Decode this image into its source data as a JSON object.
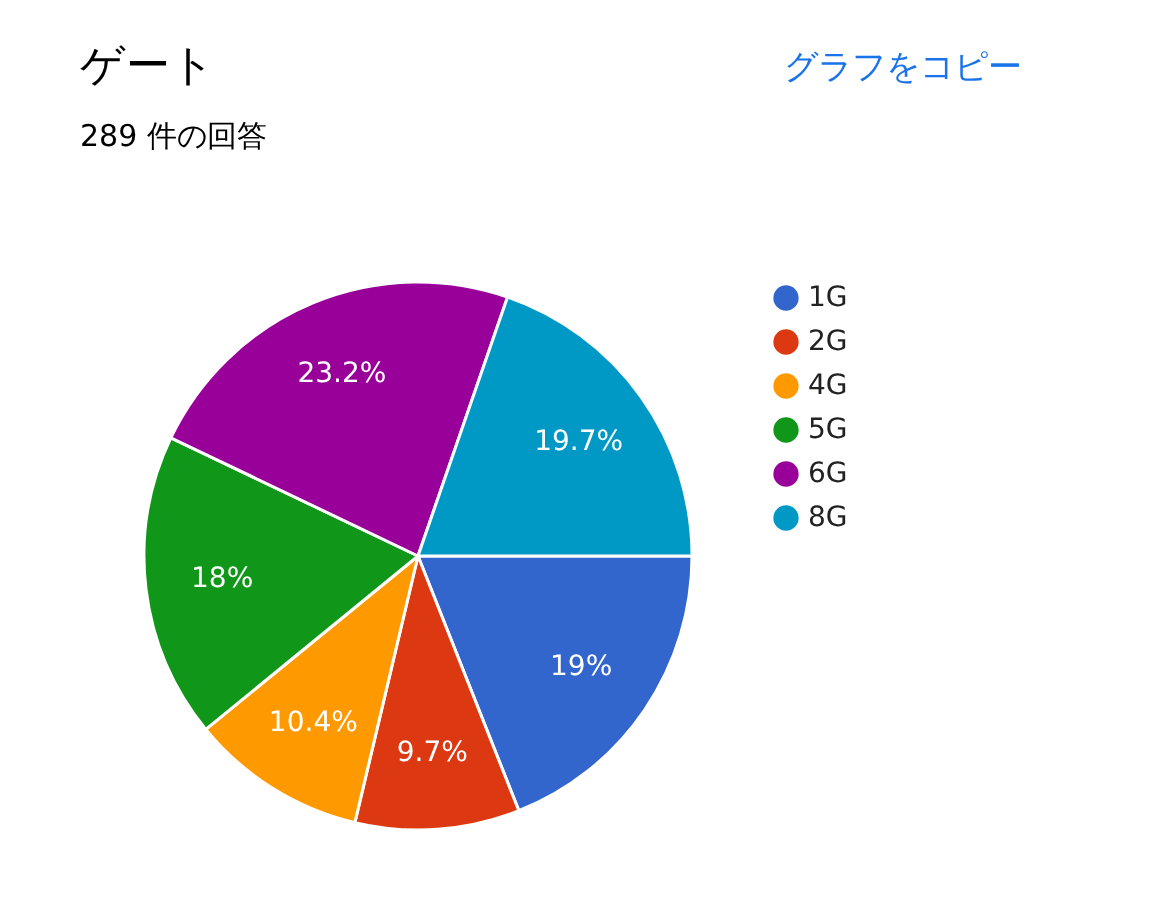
{
  "chart_data": {
    "type": "pie",
    "title": "ゲート",
    "subtitle": "289 件の回答",
    "categories": [
      "1G",
      "2G",
      "4G",
      "5G",
      "6G",
      "8G"
    ],
    "values": [
      19,
      9.7,
      10.4,
      18,
      23.2,
      19.7
    ],
    "colors": [
      "#3366cc",
      "#dc3912",
      "#ff9900",
      "#109618",
      "#990099",
      "#0099c6"
    ],
    "value_labels": [
      "19%",
      "9.7%",
      "10.4%",
      "18%",
      "23.2%",
      "19.7%"
    ],
    "legend": "right",
    "annotations": [
      "グラフをコピー"
    ]
  }
}
